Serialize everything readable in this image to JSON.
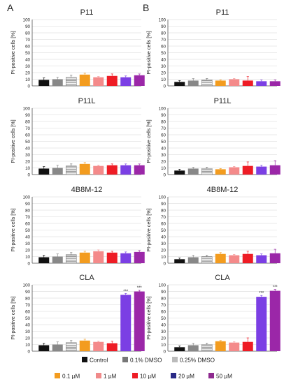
{
  "panel_letters": [
    "A",
    "B"
  ],
  "legend": [
    {
      "label": "Control",
      "key": "control",
      "color": "#111111",
      "pattern": "solid"
    },
    {
      "label": "0.1% DMSO",
      "key": "dmso01",
      "color": "#777777",
      "pattern": "solid"
    },
    {
      "label": "0.25% DMSO",
      "key": "dmso025",
      "color": "#bbbbbb",
      "pattern": "solid"
    },
    {
      "label": "0.1 µM",
      "key": "c01",
      "color": "#f39c1f",
      "pattern": "solid"
    },
    {
      "label": "1 µM",
      "key": "c1",
      "color": "#f08a8a",
      "pattern": "solid"
    },
    {
      "label": "10 µM",
      "key": "c10",
      "color": "#ee1c25",
      "pattern": "solid"
    },
    {
      "label": "20 µM",
      "key": "c20",
      "color": "#2a2a86",
      "pattern": "solid"
    },
    {
      "label": "50 µM",
      "key": "c50",
      "color": "#8e2a8f",
      "pattern": "solid"
    }
  ],
  "bar_styles": [
    {
      "fill": "#111111",
      "pattern": "solid"
    },
    {
      "fill": "#888888",
      "pattern": "solid"
    },
    {
      "fill": "#ffffff",
      "pattern": "stripes"
    },
    {
      "fill": "#f39c1f",
      "pattern": "solid"
    },
    {
      "fill": "#f48a8a",
      "pattern": "solid"
    },
    {
      "fill": "#ee1c25",
      "pattern": "solid"
    },
    {
      "fill": "#7b3fe4",
      "pattern": "solid"
    },
    {
      "fill": "#9b27a8",
      "pattern": "solid"
    }
  ],
  "chart_data": [
    {
      "type": "bar",
      "panel": "A",
      "title": "P11",
      "ylabel": "PI-positive cells [%]",
      "ylim": [
        0,
        100
      ],
      "yticks": [
        0,
        10,
        20,
        30,
        40,
        50,
        60,
        70,
        80,
        90,
        100
      ],
      "values": [
        9,
        10,
        13,
        17,
        13,
        15,
        13,
        16
      ],
      "errors": [
        3,
        3,
        3,
        2,
        1,
        3,
        2,
        2
      ],
      "significance": [
        "",
        "",
        "",
        "",
        "",
        "",
        "",
        ""
      ]
    },
    {
      "type": "bar",
      "panel": "B",
      "title": "P11",
      "ylabel": "PI-positive cells [%]",
      "ylim": [
        0,
        100
      ],
      "yticks": [
        0,
        10,
        20,
        30,
        40,
        50,
        60,
        70,
        80,
        90,
        100
      ],
      "values": [
        6,
        8,
        9,
        8,
        10,
        8,
        7,
        7
      ],
      "errors": [
        2,
        3,
        2,
        1,
        1,
        6,
        2,
        2
      ],
      "significance": [
        "",
        "",
        "",
        "",
        "",
        "",
        "",
        ""
      ]
    },
    {
      "type": "bar",
      "panel": "A",
      "title": "P11L",
      "ylabel": "PI-positive cells [%]",
      "ylim": [
        0,
        100
      ],
      "yticks": [
        0,
        10,
        20,
        30,
        40,
        50,
        60,
        70,
        80,
        90,
        100
      ],
      "values": [
        9,
        10,
        13,
        16,
        13,
        14,
        14,
        14
      ],
      "errors": [
        3,
        4,
        3,
        2,
        1,
        2,
        2,
        2
      ],
      "significance": [
        "",
        "",
        "",
        "",
        "",
        "",
        "",
        ""
      ]
    },
    {
      "type": "bar",
      "panel": "B",
      "title": "P11L",
      "ylabel": "PI-positive cells [%]",
      "ylim": [
        0,
        100
      ],
      "yticks": [
        0,
        10,
        20,
        30,
        40,
        50,
        60,
        70,
        80,
        90,
        100
      ],
      "values": [
        6,
        9,
        9,
        8,
        11,
        13,
        12,
        14
      ],
      "errors": [
        2,
        2,
        2,
        1,
        1,
        6,
        2,
        7
      ],
      "significance": [
        "",
        "",
        "",
        "",
        "",
        "",
        "",
        ""
      ]
    },
    {
      "type": "bar",
      "panel": "A",
      "title": "4B8M-12",
      "ylabel": "PI-positive cells [%]",
      "ylim": [
        0,
        100
      ],
      "yticks": [
        0,
        10,
        20,
        30,
        40,
        50,
        60,
        70,
        80,
        90,
        100
      ],
      "values": [
        9,
        10,
        13,
        16,
        18,
        16,
        15,
        17
      ],
      "errors": [
        3,
        4,
        3,
        2,
        2,
        2,
        2,
        2
      ],
      "significance": [
        "",
        "",
        "",
        "",
        "",
        "",
        "",
        ""
      ]
    },
    {
      "type": "bar",
      "panel": "B",
      "title": "4B8M-12",
      "ylabel": "PI-positive cells [%]",
      "ylim": [
        0,
        100
      ],
      "yticks": [
        0,
        10,
        20,
        30,
        40,
        50,
        60,
        70,
        80,
        90,
        100
      ],
      "values": [
        6,
        9,
        10,
        14,
        12,
        14,
        12,
        15
      ],
      "errors": [
        2,
        3,
        2,
        2,
        1,
        4,
        2,
        6
      ],
      "significance": [
        "",
        "",
        "",
        "",
        "",
        "",
        "",
        ""
      ]
    },
    {
      "type": "bar",
      "panel": "A",
      "title": "CLA",
      "ylabel": "PI-positive cells [%]",
      "ylim": [
        0,
        100
      ],
      "yticks": [
        0,
        10,
        20,
        30,
        40,
        50,
        60,
        70,
        80,
        90,
        100
      ],
      "values": [
        9,
        10,
        13,
        16,
        14,
        12,
        85,
        90
      ],
      "errors": [
        3,
        4,
        3,
        2,
        1,
        3,
        2,
        2
      ],
      "significance": [
        "",
        "",
        "",
        "",
        "",
        "",
        "***",
        "***"
      ]
    },
    {
      "type": "bar",
      "panel": "B",
      "title": "CLA",
      "ylabel": "PI-positive cells [%]",
      "ylim": [
        0,
        100
      ],
      "yticks": [
        0,
        10,
        20,
        30,
        40,
        50,
        60,
        70,
        80,
        90,
        100
      ],
      "values": [
        6,
        9,
        10,
        15,
        13,
        14,
        82,
        91
      ],
      "errors": [
        2,
        3,
        2,
        1,
        1,
        6,
        2,
        2
      ],
      "significance": [
        "",
        "",
        "",
        "",
        "",
        "",
        "***",
        "***"
      ]
    }
  ]
}
